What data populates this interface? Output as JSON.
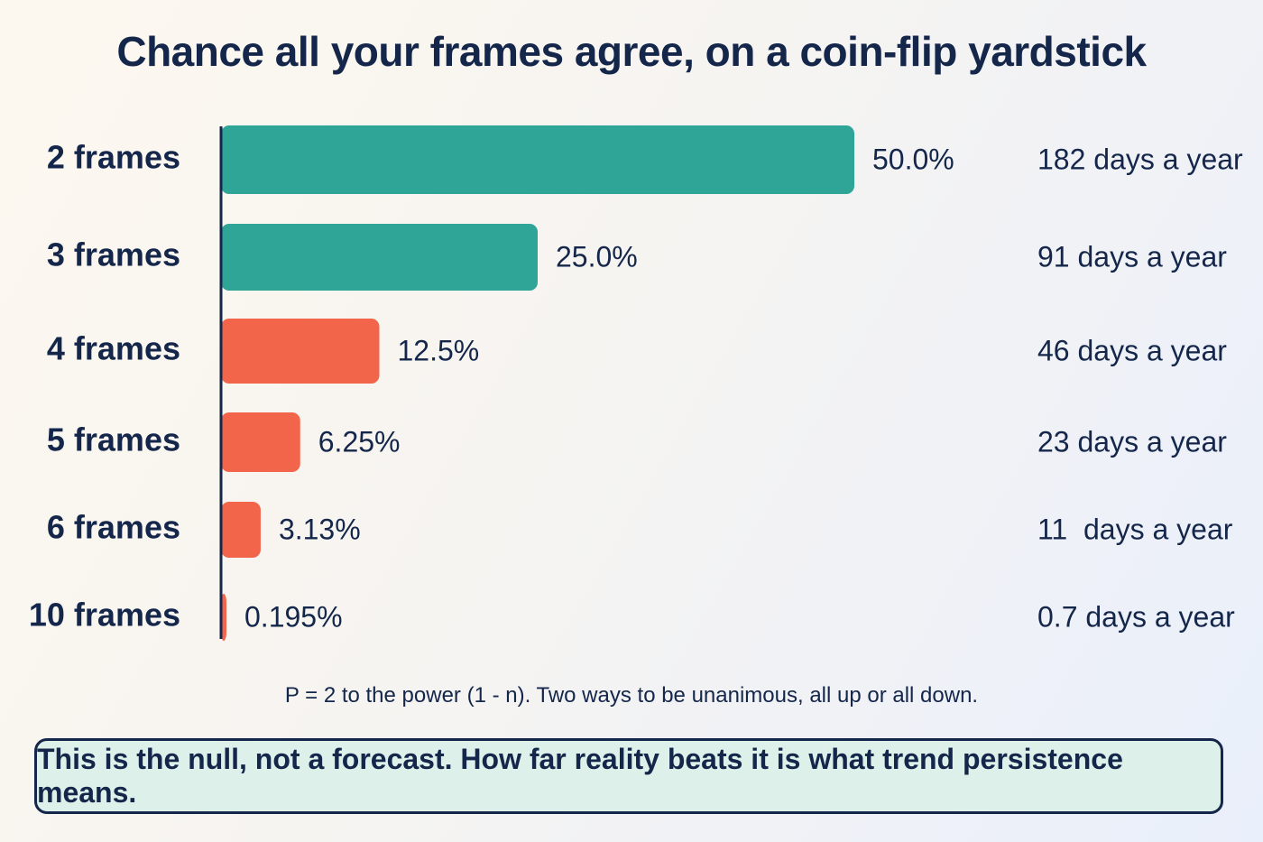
{
  "chart_data": {
    "type": "bar",
    "orientation": "horizontal",
    "title": "Chance all your frames agree, on a coin-flip yardstick",
    "categories": [
      "2 frames",
      "3 frames",
      "4 frames",
      "5 frames",
      "6 frames",
      "10 frames"
    ],
    "values": [
      50.0,
      25.0,
      12.5,
      6.25,
      3.13,
      0.195
    ],
    "value_labels": [
      "50.0%",
      "25.0%",
      "12.5%",
      "6.25%",
      "3.13%",
      "0.195%"
    ],
    "days_labels": [
      "182 days a year",
      "91 days a year",
      "46 days a year",
      "23 days a year",
      "11  days a year",
      "0.7 days a year"
    ],
    "xlim": [
      0,
      50
    ],
    "grid": false,
    "legend": "none",
    "colors": {
      "teal": "#2ea597",
      "coral": "#f2654a",
      "axis": "#14264a"
    },
    "bar_colors": [
      "teal",
      "teal",
      "coral",
      "coral",
      "coral",
      "coral"
    ]
  },
  "formula_note": "P = 2 to the power (1 - n). Two ways to be unanimous, all up or all down.",
  "callout_text": "This is the null, not a forecast. How far reality beats it is what trend persistence means."
}
